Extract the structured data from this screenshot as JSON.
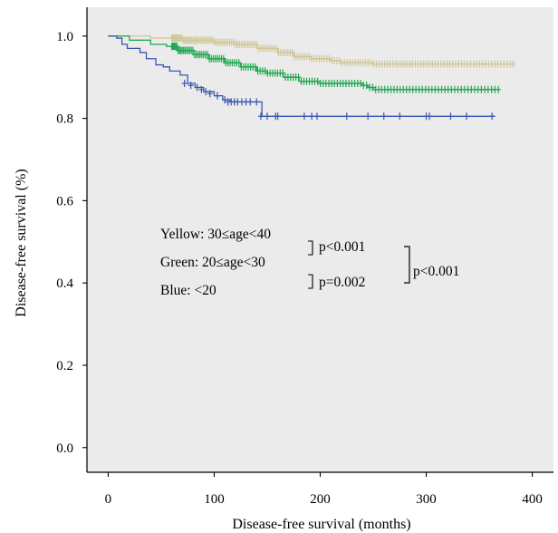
{
  "chart_data": {
    "type": "line",
    "subtype": "kaplan-meier",
    "xlabel": "Disease-free survival (months)",
    "ylabel": "Disease-free survival (%)",
    "xlim": [
      -20,
      420
    ],
    "ylim": [
      -0.06,
      1.07
    ],
    "xticks": [
      0,
      100,
      200,
      300,
      400
    ],
    "yticks": [
      0.0,
      0.2,
      0.4,
      0.6,
      0.8,
      1.0
    ],
    "ytick_labels": [
      "0.0",
      "0.2",
      "0.4",
      "0.6",
      "0.8",
      "1.0"
    ],
    "grid": false,
    "background": "#ebebeb",
    "series": [
      {
        "color": "#cfc79a",
        "steps": [
          [
            0,
            1.0
          ],
          [
            40,
            0.995
          ],
          [
            70,
            0.99
          ],
          [
            100,
            0.985
          ],
          [
            120,
            0.98
          ],
          [
            140,
            0.97
          ],
          [
            160,
            0.96
          ],
          [
            175,
            0.95
          ],
          [
            190,
            0.945
          ],
          [
            210,
            0.94
          ],
          [
            220,
            0.935
          ],
          [
            250,
            0.932
          ],
          [
            382,
            0.932
          ]
        ],
        "censor_range": [
          60,
          382
        ],
        "censor_count": 150
      },
      {
        "color": "#1ea84f",
        "steps": [
          [
            0,
            1.0
          ],
          [
            20,
            0.99
          ],
          [
            40,
            0.98
          ],
          [
            55,
            0.975
          ],
          [
            65,
            0.965
          ],
          [
            80,
            0.955
          ],
          [
            95,
            0.945
          ],
          [
            110,
            0.935
          ],
          [
            125,
            0.925
          ],
          [
            140,
            0.915
          ],
          [
            150,
            0.91
          ],
          [
            165,
            0.9
          ],
          [
            180,
            0.89
          ],
          [
            200,
            0.885
          ],
          [
            230,
            0.885
          ],
          [
            240,
            0.88
          ],
          [
            245,
            0.875
          ],
          [
            250,
            0.87
          ],
          [
            368,
            0.87
          ]
        ],
        "censor_range": [
          60,
          368
        ],
        "censor_count": 130
      },
      {
        "color": "#3b56b0",
        "steps": [
          [
            0,
            1.0
          ],
          [
            8,
            0.995
          ],
          [
            13,
            0.98
          ],
          [
            18,
            0.97
          ],
          [
            30,
            0.96
          ],
          [
            36,
            0.945
          ],
          [
            45,
            0.93
          ],
          [
            52,
            0.925
          ],
          [
            58,
            0.915
          ],
          [
            68,
            0.905
          ],
          [
            75,
            0.885
          ],
          [
            82,
            0.875
          ],
          [
            90,
            0.865
          ],
          [
            100,
            0.855
          ],
          [
            108,
            0.845
          ],
          [
            115,
            0.84
          ],
          [
            142,
            0.84
          ],
          [
            145,
            0.805
          ],
          [
            365,
            0.805
          ]
        ],
        "censor_marks": [
          [
            72,
            0.885
          ],
          [
            78,
            0.88
          ],
          [
            84,
            0.875
          ],
          [
            88,
            0.87
          ],
          [
            92,
            0.865
          ],
          [
            96,
            0.86
          ],
          [
            103,
            0.855
          ],
          [
            110,
            0.845
          ],
          [
            113,
            0.84
          ],
          [
            116,
            0.84
          ],
          [
            119,
            0.84
          ],
          [
            122,
            0.84
          ],
          [
            126,
            0.84
          ],
          [
            130,
            0.84
          ],
          [
            134,
            0.84
          ],
          [
            140,
            0.84
          ],
          [
            144,
            0.805
          ],
          [
            150,
            0.805
          ],
          [
            158,
            0.805
          ],
          [
            160,
            0.805
          ],
          [
            185,
            0.805
          ],
          [
            192,
            0.805
          ],
          [
            197,
            0.805
          ],
          [
            225,
            0.805
          ],
          [
            245,
            0.805
          ],
          [
            260,
            0.805
          ],
          [
            275,
            0.805
          ],
          [
            300,
            0.805
          ],
          [
            303,
            0.805
          ],
          [
            323,
            0.805
          ],
          [
            338,
            0.805
          ],
          [
            362,
            0.805
          ]
        ]
      }
    ],
    "annotations": {
      "legend_lines": [
        "Yellow: 30≤age<40",
        "Green: 20≤age<30",
        "Blue: <20"
      ],
      "p_yellow_green": "p<0.001",
      "p_green_blue": "p=0.002",
      "p_yellow_blue": "p<0.001"
    }
  }
}
